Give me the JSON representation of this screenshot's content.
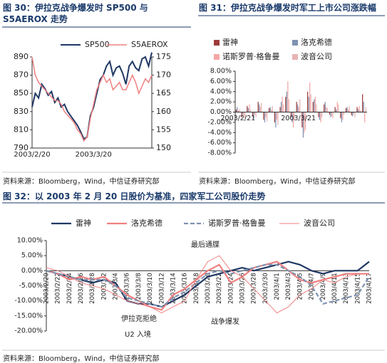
{
  "chart_data": [
    {
      "type": "line",
      "title": "图 30：伊拉克战争爆发时 SP500 与 S5AEROX 走势",
      "source": "资料来源：Bloomberg，Wind，中信证券研究部",
      "categories": [
        "2003/2/20",
        null,
        null,
        null,
        null,
        null,
        null,
        null,
        null,
        null,
        null,
        null,
        null,
        null,
        null,
        null,
        null,
        null,
        null,
        "2003/3/20",
        null,
        null,
        null,
        null,
        null,
        null,
        null,
        null,
        null,
        null,
        null,
        null,
        null,
        null,
        null,
        null,
        null,
        null
      ],
      "series": [
        {
          "name": "SP500",
          "color": "#1f3864",
          "line_width": 2,
          "values": [
            835,
            850,
            845,
            860,
            855,
            848,
            852,
            840,
            845,
            835,
            838,
            830,
            825,
            820,
            815,
            808,
            800,
            802,
            825,
            835,
            850,
            865,
            870,
            880,
            885,
            870,
            878,
            880,
            872,
            860,
            880,
            885,
            878,
            875,
            888,
            890,
            880,
            895
          ]
        },
        {
          "name": "S5AEROX",
          "color": "#f08080",
          "axis": "y2",
          "line_width": 1.5,
          "values": [
            175,
            170,
            168,
            167,
            166,
            165,
            164,
            163,
            163,
            162,
            160,
            159,
            158,
            157,
            155,
            154,
            152,
            153,
            158,
            162,
            166,
            168,
            170,
            168,
            169,
            166,
            167,
            168,
            166,
            166,
            168,
            170,
            168,
            165,
            167,
            169,
            168,
            170
          ]
        }
      ],
      "ylim": [
        790,
        890
      ],
      "yticks": [
        790,
        810,
        830,
        850,
        870,
        890
      ],
      "y2lim": [
        150,
        175
      ],
      "y2ticks": [
        150,
        155,
        160,
        165,
        170,
        175
      ],
      "legend": "top"
    },
    {
      "type": "bar",
      "title": "图 31：伊拉克战争爆发时军工上市公司涨跌幅",
      "source": "资料来源：Bloomberg，Wind，中信证券研究部",
      "categories": [
        "2003/2/21",
        null,
        null,
        null,
        null,
        null,
        null,
        null,
        null,
        null,
        null,
        "2003/3/21",
        null,
        null,
        null,
        null,
        null,
        null,
        null,
        null,
        null,
        null,
        null,
        null
      ],
      "series": [
        {
          "name": "雷神",
          "color": "#9e3b3b",
          "values": [
            0.5,
            -1,
            1.2,
            -0.8,
            2,
            -1.5,
            0.8,
            -2,
            1,
            3,
            -1,
            2,
            -3,
            4,
            2,
            -1,
            1.5,
            -0.5,
            1,
            -1.2,
            0.8,
            -0.6,
            1,
            3.5
          ]
        },
        {
          "name": "洛克希德",
          "color": "#7f93b0",
          "values": [
            1,
            -0.5,
            0.8,
            -1.2,
            1.5,
            -2,
            1,
            -3,
            2,
            4,
            -2,
            1.5,
            -5,
            3,
            2.5,
            -1.5,
            2,
            -1,
            0.5,
            -2,
            1,
            -0.8,
            0.6,
            2
          ]
        },
        {
          "name": "诺斯罗普·格鲁曼",
          "color": "#f4a6a6",
          "values": [
            0.3,
            -0.8,
            1.5,
            -0.5,
            1,
            -1,
            0.5,
            -1.5,
            3,
            6,
            -3,
            1,
            -4,
            5.8,
            3,
            -2,
            1,
            -0.8,
            2,
            -1.5,
            0.5,
            -0.3,
            1.2,
            -2
          ]
        },
        {
          "name": "波音公司",
          "color": "#e8b4b4",
          "values": [
            0.6,
            -1.2,
            0.5,
            -1,
            1.8,
            -1.8,
            1.2,
            -2.5,
            1.5,
            2.5,
            -1.5,
            2.5,
            -3.5,
            3.5,
            1.5,
            -1,
            0.8,
            -1.2,
            1.5,
            -0.5,
            1.2,
            -1,
            0.4,
            1
          ]
        }
      ],
      "ylim": [
        -8,
        8
      ],
      "yticks": [
        {
          "value": -8,
          "label": "-8.00%"
        },
        {
          "value": -6,
          "label": "-6.00%"
        },
        {
          "value": -4,
          "label": "-4.00%"
        },
        {
          "value": -2,
          "label": "-2.00%"
        },
        {
          "value": 0,
          "label": "0.00%"
        },
        {
          "value": 2,
          "label": "2.00%"
        },
        {
          "value": 4,
          "label": "4.00%"
        },
        {
          "value": 6,
          "label": "6.00%"
        },
        {
          "value": 8,
          "label": "8.00%"
        }
      ],
      "legend": "top"
    },
    {
      "type": "line",
      "title": "图 32：以 2003 年 2 月 20 日股价为基准，四家军工公司股价走势",
      "source": "资料来源：Bloomberg，Wind，中信证券研究部",
      "categories": [
        "2003/2/20",
        "2003/2/22",
        "2003/2/24",
        "2003/2/26",
        "2003/2/28",
        "2003/3/2",
        "2003/3/4",
        "2003/3/6",
        "2003/3/8",
        "2003/3/10",
        "2003/3/12",
        "2003/3/14",
        "2003/3/16",
        "2003/3/18",
        "2003/3/20",
        "2003/3/22",
        "2003/3/24",
        "2003/3/26",
        "2003/3/28",
        "2003/3/30",
        "2003/4/1",
        "2003/4/3",
        "2003/4/5",
        "2003/4/7",
        "2003/4/9",
        "2003/4/11",
        "2003/4/13",
        "2003/4/15",
        "2003/4/17"
      ],
      "series": [
        {
          "name": "雷神",
          "color": "#1f3864",
          "line_width": 2.2,
          "values": [
            0,
            -1,
            -2,
            -3,
            -4,
            -3,
            -4,
            -10,
            -11,
            -11,
            -12,
            -10,
            -8,
            -5,
            -2,
            -1,
            0,
            1,
            0,
            1,
            2,
            3,
            2,
            0,
            -1,
            0,
            0,
            0,
            3
          ]
        },
        {
          "name": "洛克希德",
          "color": "#f08080",
          "line_width": 2.2,
          "values": [
            0,
            -1,
            -3,
            -2,
            -3,
            -2,
            -5,
            -8,
            -10,
            -12,
            -13,
            -8,
            -6,
            -3,
            0,
            2,
            -4,
            -2,
            1,
            2,
            3,
            0,
            -3,
            -4,
            -3,
            -2,
            -1,
            -1,
            -1
          ]
        },
        {
          "name": "诺斯罗普·格鲁曼",
          "color": "#7f93b0",
          "line_width": 2.2,
          "dash": true,
          "values": [
            0,
            -1,
            -2,
            -3,
            -3,
            -3,
            -5,
            -9,
            -10,
            -11,
            -12,
            -9,
            -7,
            -4,
            -1,
            0,
            -1,
            0,
            1,
            2,
            2,
            0,
            -2,
            -5,
            -11,
            -10,
            -9,
            -8,
            -2
          ]
        },
        {
          "name": "波音公司",
          "color": "#f08080",
          "line_width": 1,
          "values": [
            1,
            0,
            -2,
            -4,
            -5,
            -6,
            -8,
            -10,
            -11,
            -12,
            -14,
            -12,
            -10,
            -3,
            3,
            5,
            0,
            -2,
            -6,
            -10,
            -14,
            -12,
            -8,
            -6,
            -3,
            -4,
            -2,
            -1,
            -1
          ]
        }
      ],
      "ylim": [
        -20,
        10
      ],
      "yticks": [
        {
          "value": -20,
          "label": "-20.00%"
        },
        {
          "value": -15,
          "label": "-15.00%"
        },
        {
          "value": -10,
          "label": "-10.00%"
        },
        {
          "value": -5,
          "label": "-5.00%"
        },
        {
          "value": 0,
          "label": "0.00%"
        },
        {
          "value": 5,
          "label": "5.00%"
        },
        {
          "value": 10,
          "label": "10.00%"
        }
      ],
      "annotations": [
        "最后通牒",
        "伊拉克拒绝",
        "U2 入境",
        "战争爆发"
      ],
      "legend": "top"
    }
  ]
}
